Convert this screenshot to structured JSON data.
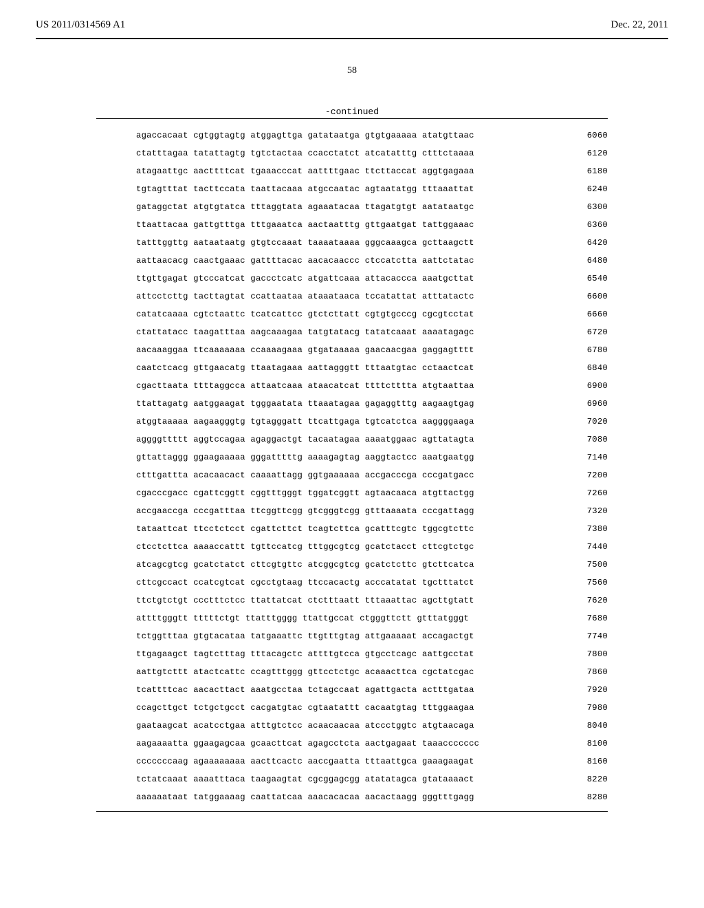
{
  "header": {
    "publication_number": "US 2011/0314569 A1",
    "date": "Dec. 22, 2011"
  },
  "page_number": "58",
  "continued_label": "-continued",
  "sequence": {
    "rows": [
      {
        "seq": "agaccacaat cgtggtagtg atggagttga gatataatga gtgtgaaaaa atatgttaac",
        "pos": "6060"
      },
      {
        "seq": "ctatttagaa tatattagtg tgtctactaa ccacctatct atcatatttg ctttctaaaa",
        "pos": "6120"
      },
      {
        "seq": "atagaattgc aacttttcat tgaaacccat aattttgaac ttcttaccat aggtgagaaa",
        "pos": "6180"
      },
      {
        "seq": "tgtagtttat tacttccata taattacaaa atgccaatac agtaatatgg tttaaattat",
        "pos": "6240"
      },
      {
        "seq": "gataggctat atgtgtatca tttaggtata agaaatacaa ttagatgtgt aatataatgc",
        "pos": "6300"
      },
      {
        "seq": "ttaattacaa gattgtttga tttgaaatca aactaatttg gttgaatgat tattggaaac",
        "pos": "6360"
      },
      {
        "seq": "tatttggttg aataataatg gtgtccaaat taaaataaaa gggcaaagca gcttaagctt",
        "pos": "6420"
      },
      {
        "seq": "aattaacacg caactgaaac gattttacac aacacaaccc ctccatctta aattctatac",
        "pos": "6480"
      },
      {
        "seq": "ttgttgagat gtcccatcat gaccctcatc atgattcaaa attacaccca aaatgcttat",
        "pos": "6540"
      },
      {
        "seq": "attcctcttg tacttagtat ccattaataa ataaataaca tccatattat atttatactc",
        "pos": "6600"
      },
      {
        "seq": "catatcaaaa cgtctaattc tcatcattcc gtctcttatt cgtgtgcccg cgcgtcctat",
        "pos": "6660"
      },
      {
        "seq": "ctattatacc taagatttaa aagcaaagaa tatgtatacg tatatcaaat aaaatagagc",
        "pos": "6720"
      },
      {
        "seq": "aacaaaggaa ttcaaaaaaa ccaaaagaaa gtgataaaaa gaacaacgaa gaggagtttt",
        "pos": "6780"
      },
      {
        "seq": "caatctcacg gttgaacatg ttaatagaaa aattagggtt tttaatgtac cctaactcat",
        "pos": "6840"
      },
      {
        "seq": "cgacttaata ttttaggcca attaatcaaa ataacatcat ttttctttta atgtaattaa",
        "pos": "6900"
      },
      {
        "seq": "ttattagatg aatggaagat tgggaatata ttaaatagaa gagaggtttg aagaagtgag",
        "pos": "6960"
      },
      {
        "seq": "atggtaaaaa aagaagggtg tgtagggatt ttcattgaga tgtcatctca aaggggaaga",
        "pos": "7020"
      },
      {
        "seq": "aggggttttt aggtccagaa agaggactgt tacaatagaa aaaatggaac agttatagta",
        "pos": "7080"
      },
      {
        "seq": "gttattaggg ggaagaaaaa gggatttttg aaaagagtag aaggtactcc aaatgaatgg",
        "pos": "7140"
      },
      {
        "seq": "ctttgattta acacaacact caaaattagg ggtgaaaaaa accgacccga cccgatgacc",
        "pos": "7200"
      },
      {
        "seq": "cgacccgacc cgattcggtt cggtttgggt tggatcggtt agtaacaaca atgttactgg",
        "pos": "7260"
      },
      {
        "seq": "accgaaccga cccgatttaa ttcggttcgg gtcgggtcgg gtttaaaata cccgattagg",
        "pos": "7320"
      },
      {
        "seq": "tataattcat ttcctctcct cgattcttct tcagtcttca gcatttcgtc tggcgtcttc",
        "pos": "7380"
      },
      {
        "seq": "ctcctcttca aaaaccattt tgttccatcg tttggcgtcg gcatctacct cttcgtctgc",
        "pos": "7440"
      },
      {
        "seq": "atcagcgtcg gcatctatct cttcgtgttc atcggcgtcg gcatctcttc gtcttcatca",
        "pos": "7500"
      },
      {
        "seq": "cttcgccact ccatcgtcat cgcctgtaag ttccacactg acccatatat tgctttatct",
        "pos": "7560"
      },
      {
        "seq": "ttctgtctgt ccctttctcc ttattatcat ctctttaatt tttaaattac agcttgtatt",
        "pos": "7620"
      },
      {
        "seq": "attttgggtt tttttctgt ttatttgggg ttattgccat ctgggttctt gtttatgggt",
        "pos": "7680"
      },
      {
        "seq": "tctggtttaa gtgtacataa tatgaaattc ttgtttgtag attgaaaaat accagactgt",
        "pos": "7740"
      },
      {
        "seq": "ttgagaagct tagtctttag tttacagctc attttgtcca gtgcctcagc aattgcctat",
        "pos": "7800"
      },
      {
        "seq": "aattgtcttt atactcattc ccagtttggg gttcctctgc acaaacttca cgctatcgac",
        "pos": "7860"
      },
      {
        "seq": "tcattttcac aacacttact aaatgcctaa tctagccaat agattgacta actttgataa",
        "pos": "7920"
      },
      {
        "seq": "ccagcttgct tctgctgcct cacgatgtac cgtaatattt cacaatgtag tttggaagaa",
        "pos": "7980"
      },
      {
        "seq": "gaataagcat acatcctgaa atttgtctcc acaacaacaa atccctggtc atgtaacaga",
        "pos": "8040"
      },
      {
        "seq": "aagaaaatta ggaagagcaa gcaacttcat agagcctcta aactgagaat taaaccccccc",
        "pos": "8100"
      },
      {
        "seq": "cccccccaag agaaaaaaaa aacttcactc aaccgaatta tttaattgca gaaagaagat",
        "pos": "8160"
      },
      {
        "seq": "tctatcaaat aaaatttaca taagaagtat cgcggagcgg atatatagca gtataaaact",
        "pos": "8220"
      },
      {
        "seq": "aaaaaataat tatggaaaag caattatcaa aaacacacaa aacactaagg gggtttgagg",
        "pos": "8280"
      }
    ]
  }
}
